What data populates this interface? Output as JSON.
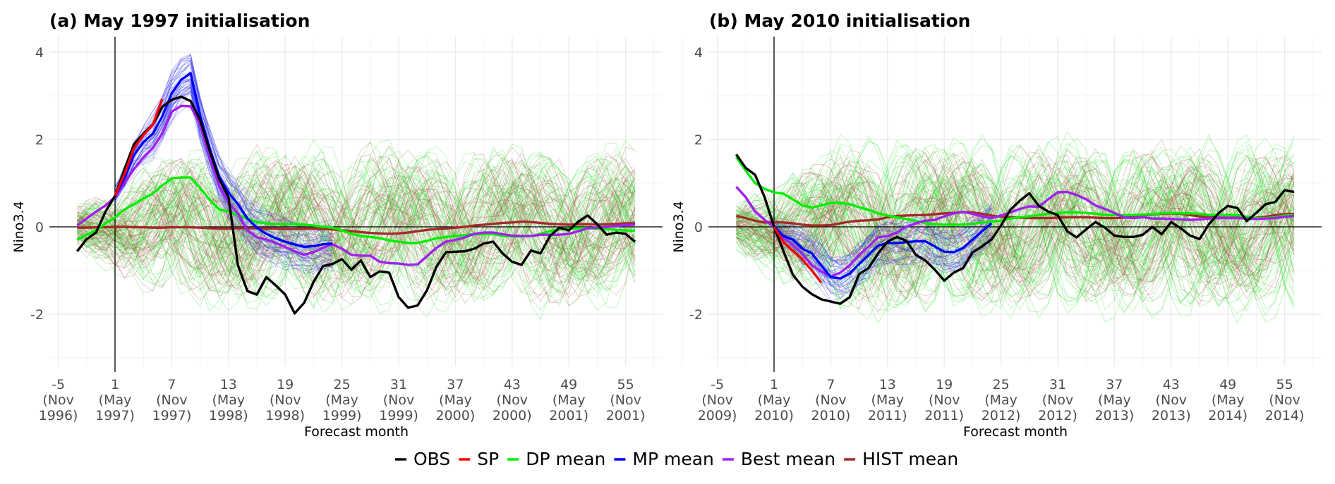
{
  "chart_data": [
    {
      "type": "line",
      "title": "(a) May 1997 initialisation",
      "xlabel": "Forecast month",
      "ylabel": "Nino3.4",
      "xlim": [
        -6.5,
        62.5
      ],
      "ylim": [
        -3.2,
        4.35
      ],
      "grid": true,
      "x_ticks": [
        {
          "value": -5,
          "label": [
            "-5",
            "(Nov",
            "1996)"
          ]
        },
        {
          "value": 1,
          "label": [
            "1",
            "(May",
            "1997)"
          ]
        },
        {
          "value": 7,
          "label": [
            "7",
            "(Nov",
            "1997)"
          ]
        },
        {
          "value": 13,
          "label": [
            "13",
            "(May",
            "1998)"
          ]
        },
        {
          "value": 19,
          "label": [
            "19",
            "(Nov",
            "1998)"
          ]
        },
        {
          "value": 25,
          "label": [
            "25",
            "(May",
            "1999)"
          ]
        },
        {
          "value": 31,
          "label": [
            "31",
            "(Nov",
            "1999)"
          ]
        },
        {
          "value": 37,
          "label": [
            "37",
            "(May",
            "2000)"
          ]
        },
        {
          "value": 43,
          "label": [
            "43",
            "(Nov",
            "2000)"
          ]
        },
        {
          "value": 49,
          "label": [
            "49",
            "(May",
            "2001)"
          ]
        },
        {
          "value": 55,
          "label": [
            "55",
            "(Nov",
            "2001)"
          ]
        }
      ],
      "y_ticks": [
        4,
        2,
        0,
        -2
      ],
      "reference_lines": {
        "vertical_x": 1,
        "horizontal_y": 0
      },
      "x_start": -3,
      "series": [
        {
          "name": "OBS",
          "x_start": -3,
          "values": [
            -0.56,
            -0.28,
            -0.13,
            0.35,
            0.71,
            1.32,
            1.89,
            2.13,
            2.34,
            2.75,
            2.91,
            2.98,
            2.88,
            2.45,
            1.75,
            1.11,
            0.68,
            -0.88,
            -1.47,
            -1.55,
            -1.15,
            -1.34,
            -1.55,
            -1.98,
            -1.74,
            -1.26,
            -0.9,
            -0.85,
            -0.74,
            -0.98,
            -0.77,
            -1.15,
            -1.02,
            -1.05,
            -1.61,
            -1.85,
            -1.8,
            -1.45,
            -0.91,
            -0.58,
            -0.57,
            -0.56,
            -0.5,
            -0.38,
            -0.34,
            -0.61,
            -0.8,
            -0.87,
            -0.54,
            -0.61,
            -0.21,
            -0.02,
            -0.08,
            0.12,
            0.26,
            0.06,
            -0.18,
            -0.13,
            -0.16,
            -0.34
          ]
        },
        {
          "name": "SP",
          "x_start": 1,
          "values": [
            0.72,
            1.21,
            1.8,
            2.1,
            2.34,
            2.93
          ]
        },
        {
          "name": "DP mean",
          "x_start": -3,
          "values": [
            -0.29,
            -0.18,
            -0.08,
            0.08,
            0.22,
            0.4,
            0.52,
            0.65,
            0.76,
            0.95,
            1.11,
            1.13,
            1.13,
            0.89,
            0.62,
            0.4,
            0.35,
            0.27,
            0.19,
            0.11,
            0.08,
            0.06,
            0.06,
            0.06,
            0.05,
            0.03,
            0.0,
            -0.02,
            -0.08,
            -0.16,
            -0.21,
            -0.23,
            -0.26,
            -0.31,
            -0.34,
            -0.37,
            -0.37,
            -0.32,
            -0.26,
            -0.23,
            -0.21,
            -0.19,
            -0.17,
            -0.17,
            -0.17,
            -0.2,
            -0.22,
            -0.22,
            -0.21,
            -0.16,
            -0.1,
            -0.06,
            -0.04,
            -0.03,
            -0.03,
            -0.04,
            -0.05,
            -0.07,
            -0.08,
            -0.09
          ]
        },
        {
          "name": "MP mean",
          "x_start": 1,
          "values": [
            0.72,
            1.11,
            1.64,
            1.94,
            2.13,
            2.53,
            3.06,
            3.37,
            3.52,
            2.56,
            1.81,
            1.16,
            0.79,
            0.52,
            0.19,
            -0.02,
            -0.16,
            -0.26,
            -0.34,
            -0.4,
            -0.46,
            -0.44,
            -0.4,
            -0.38
          ]
        },
        {
          "name": "Best mean",
          "x_start": -3,
          "values": [
            0.03,
            0.19,
            0.35,
            0.49,
            0.68,
            1.0,
            1.32,
            1.59,
            1.81,
            2.13,
            2.64,
            2.77,
            2.76,
            2.34,
            1.59,
            0.95,
            0.56,
            0.31,
            -0.08,
            -0.24,
            -0.29,
            -0.37,
            -0.46,
            -0.56,
            -0.64,
            -0.58,
            -0.48,
            -0.4,
            -0.5,
            -0.64,
            -0.66,
            -0.66,
            -0.8,
            -0.83,
            -0.84,
            -0.87,
            -0.86,
            -0.67,
            -0.48,
            -0.34,
            -0.3,
            -0.24,
            -0.16,
            -0.13,
            -0.13,
            -0.17,
            -0.2,
            -0.21,
            -0.21,
            -0.18,
            -0.18,
            -0.18,
            -0.16,
            -0.1,
            -0.03,
            -0.02,
            0.0,
            0.02,
            0.04,
            0.05
          ]
        },
        {
          "name": "HIST mean",
          "x_start": -3,
          "values": [
            -0.02,
            -0.02,
            -0.01,
            -0.01,
            0.0,
            0.0,
            -0.01,
            -0.01,
            -0.02,
            -0.02,
            -0.01,
            -0.01,
            -0.01,
            -0.02,
            -0.03,
            -0.04,
            -0.04,
            -0.03,
            -0.03,
            -0.03,
            -0.04,
            -0.04,
            -0.05,
            -0.05,
            -0.04,
            -0.04,
            -0.05,
            -0.06,
            -0.08,
            -0.1,
            -0.12,
            -0.14,
            -0.15,
            -0.16,
            -0.15,
            -0.13,
            -0.1,
            -0.07,
            -0.05,
            -0.04,
            -0.02,
            0.0,
            0.03,
            0.05,
            0.07,
            0.09,
            0.1,
            0.12,
            0.11,
            0.09,
            0.07,
            0.06,
            0.05,
            0.06,
            0.06,
            0.05,
            0.06,
            0.07,
            0.08,
            0.08
          ]
        }
      ],
      "ensembles": [
        {
          "name": "DP members",
          "color": "#22dd22",
          "count": 70,
          "x_start": -3,
          "x_end": 56,
          "amplitude": 1.4
        },
        {
          "name": "MP members",
          "color": "#2222ee",
          "count": 45,
          "x_start": 1,
          "x_end": 24,
          "follows": "MP mean",
          "spread": 0.55
        },
        {
          "name": "HIST members",
          "color": "#b05050",
          "count": 50,
          "x_start": -3,
          "x_end": 56,
          "amplitude": 1.3
        }
      ]
    },
    {
      "type": "line",
      "title": "(b) May 2010 initialisation",
      "xlabel": "Forecast month",
      "ylabel": "Nino3.4",
      "xlim": [
        -6.5,
        62.5
      ],
      "ylim": [
        -3.2,
        4.35
      ],
      "grid": true,
      "x_ticks": [
        {
          "value": -5,
          "label": [
            "-5",
            "(Nov",
            "2009)"
          ]
        },
        {
          "value": 1,
          "label": [
            "1",
            "(May",
            "2010)"
          ]
        },
        {
          "value": 7,
          "label": [
            "7",
            "(Nov",
            "2010)"
          ]
        },
        {
          "value": 13,
          "label": [
            "13",
            "(May",
            "2011)"
          ]
        },
        {
          "value": 19,
          "label": [
            "19",
            "(Nov",
            "2011)"
          ]
        },
        {
          "value": 25,
          "label": [
            "25",
            "(May",
            "2012)"
          ]
        },
        {
          "value": 31,
          "label": [
            "31",
            "(Nov",
            "2012)"
          ]
        },
        {
          "value": 37,
          "label": [
            "37",
            "(May",
            "2013)"
          ]
        },
        {
          "value": 43,
          "label": [
            "43",
            "(Nov",
            "2013)"
          ]
        },
        {
          "value": 49,
          "label": [
            "49",
            "(May",
            "2014)"
          ]
        },
        {
          "value": 55,
          "label": [
            "55",
            "(Nov",
            "2014)"
          ]
        }
      ],
      "y_ticks": [
        4,
        2,
        0,
        -2
      ],
      "reference_lines": {
        "vertical_x": 1,
        "horizontal_y": 0
      },
      "series": [
        {
          "name": "OBS",
          "x_start": -3,
          "values": [
            1.66,
            1.35,
            1.19,
            0.68,
            0.0,
            -0.56,
            -1.1,
            -1.37,
            -1.54,
            -1.66,
            -1.71,
            -1.76,
            -1.61,
            -1.08,
            -0.94,
            -0.61,
            -0.34,
            -0.23,
            -0.32,
            -0.64,
            -0.77,
            -0.98,
            -1.23,
            -1.05,
            -0.94,
            -0.58,
            -0.45,
            -0.29,
            0.03,
            0.39,
            0.6,
            0.77,
            0.48,
            0.35,
            0.27,
            -0.1,
            -0.24,
            -0.06,
            0.11,
            -0.02,
            -0.2,
            -0.23,
            -0.23,
            -0.18,
            0.0,
            -0.17,
            0.11,
            -0.03,
            -0.2,
            -0.28,
            0.06,
            0.31,
            0.48,
            0.43,
            0.13,
            0.32,
            0.52,
            0.57,
            0.84,
            0.8
          ]
        },
        {
          "name": "SP",
          "x_start": 1,
          "values": [
            0.0,
            -0.35,
            -0.55,
            -0.75,
            -1.0,
            -1.28
          ]
        },
        {
          "name": "DP mean",
          "x_start": -3,
          "values": [
            1.6,
            1.29,
            1.0,
            0.87,
            0.79,
            0.76,
            0.63,
            0.49,
            0.44,
            0.49,
            0.55,
            0.55,
            0.52,
            0.45,
            0.39,
            0.31,
            0.26,
            0.22,
            0.18,
            0.14,
            0.08,
            0.06,
            0.05,
            0.05,
            0.05,
            0.07,
            0.1,
            0.12,
            0.14,
            0.19,
            0.22,
            0.24,
            0.27,
            0.3,
            0.32,
            0.33,
            0.33,
            0.32,
            0.3,
            0.27,
            0.27,
            0.27,
            0.27,
            0.28,
            0.29,
            0.31,
            0.32,
            0.31,
            0.31,
            0.3,
            0.27,
            0.27,
            0.27,
            0.27,
            0.23,
            0.2,
            0.2,
            0.22,
            0.26,
            0.27
          ]
        },
        {
          "name": "MP mean",
          "x_start": 1,
          "values": [
            0.0,
            -0.21,
            -0.29,
            -0.5,
            -0.61,
            -0.88,
            -1.15,
            -1.18,
            -1.07,
            -0.85,
            -0.64,
            -0.43,
            -0.37,
            -0.37,
            -0.35,
            -0.33,
            -0.33,
            -0.45,
            -0.57,
            -0.58,
            -0.48,
            -0.29,
            -0.1,
            0.08
          ]
        },
        {
          "name": "Best mean",
          "x_start": -3,
          "values": [
            0.92,
            0.68,
            0.35,
            0.16,
            0.0,
            -0.24,
            -0.42,
            -0.61,
            -0.88,
            -1.02,
            -1.13,
            -1.05,
            -0.88,
            -0.64,
            -0.45,
            -0.24,
            -0.21,
            -0.13,
            0.0,
            0.08,
            0.14,
            0.16,
            0.24,
            0.31,
            0.34,
            0.3,
            0.24,
            0.2,
            0.26,
            0.33,
            0.41,
            0.47,
            0.46,
            0.63,
            0.79,
            0.8,
            0.73,
            0.63,
            0.49,
            0.41,
            0.32,
            0.22,
            0.2,
            0.22,
            0.19,
            0.19,
            0.18,
            0.17,
            0.16,
            0.17,
            0.19,
            0.2,
            0.2,
            0.2,
            0.19,
            0.18,
            0.19,
            0.2,
            0.23,
            0.25
          ]
        },
        {
          "name": "HIST mean",
          "x_start": -3,
          "values": [
            0.25,
            0.2,
            0.14,
            0.1,
            0.11,
            0.1,
            0.08,
            0.05,
            0.03,
            0.03,
            0.04,
            0.08,
            0.12,
            0.14,
            0.15,
            0.17,
            0.22,
            0.25,
            0.26,
            0.27,
            0.27,
            0.29,
            0.31,
            0.32,
            0.34,
            0.33,
            0.3,
            0.26,
            0.23,
            0.22,
            0.21,
            0.2,
            0.2,
            0.2,
            0.21,
            0.22,
            0.22,
            0.22,
            0.21,
            0.2,
            0.2,
            0.21,
            0.23,
            0.26,
            0.28,
            0.3,
            0.31,
            0.3,
            0.27,
            0.24,
            0.22,
            0.21,
            0.21,
            0.21,
            0.2,
            0.21,
            0.23,
            0.27,
            0.29,
            0.3
          ]
        }
      ],
      "ensembles": [
        {
          "name": "DP members",
          "color": "#22dd22",
          "count": 80,
          "x_start": -3,
          "x_end": 56,
          "amplitude": 1.5
        },
        {
          "name": "MP members",
          "color": "#2222ee",
          "count": 40,
          "x_start": 1,
          "x_end": 24,
          "follows": "MP mean",
          "spread": 0.5
        },
        {
          "name": "HIST members",
          "color": "#b05050",
          "count": 50,
          "x_start": -3,
          "x_end": 56,
          "amplitude": 1.3
        }
      ]
    }
  ],
  "legend": {
    "placement": "bottom-center",
    "items": [
      {
        "name": "OBS",
        "color": "#000000"
      },
      {
        "name": "SP",
        "color": "#ff0000"
      },
      {
        "name": "DP mean",
        "color": "#00ee00"
      },
      {
        "name": "MP mean",
        "color": "#0000ff"
      },
      {
        "name": "Best mean",
        "color": "#a020f0"
      },
      {
        "name": "HIST mean",
        "color": "#a52a2a"
      }
    ]
  }
}
